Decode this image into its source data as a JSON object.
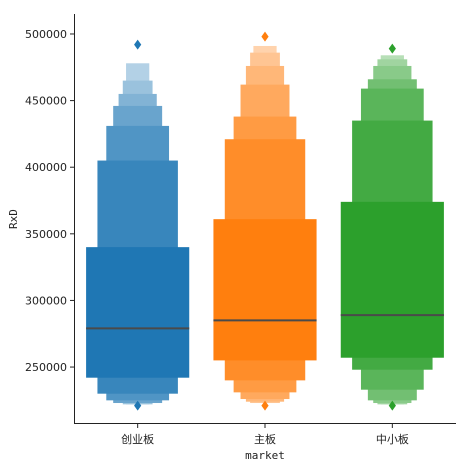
{
  "chart_data": {
    "type": "boxen",
    "title": "",
    "xlabel": "market",
    "ylabel": "RxD",
    "ylim": [
      208000,
      515000
    ],
    "yticks": [
      250000,
      300000,
      350000,
      400000,
      450000,
      500000
    ],
    "ytick_labels": [
      "250000",
      "300000",
      "350000",
      "400000",
      "450000",
      "500000"
    ],
    "grid": false,
    "legend": "none",
    "categories": [
      "创业板",
      "主板",
      "中小板"
    ],
    "series": [
      {
        "category": "创业板",
        "color": "#1f77b4",
        "median": 279000,
        "boxes": [
          [
            242000,
            340000
          ],
          [
            230000,
            405000
          ],
          [
            225000,
            431000
          ],
          [
            223000,
            446000
          ],
          [
            223000,
            455000
          ],
          [
            222000,
            465000
          ],
          [
            222000,
            478000
          ]
        ],
        "outliers": [
          492000,
          221000
        ]
      },
      {
        "category": "主板",
        "color": "#ff7f0e",
        "median": 285000,
        "boxes": [
          [
            255000,
            361000
          ],
          [
            240000,
            421000
          ],
          [
            231000,
            438000
          ],
          [
            226000,
            462000
          ],
          [
            224000,
            476000
          ],
          [
            223000,
            486000
          ],
          [
            223000,
            491000
          ]
        ],
        "outliers": [
          498000,
          221000
        ]
      },
      {
        "category": "中小板",
        "color": "#2ca02c",
        "median": 289000,
        "boxes": [
          [
            257000,
            374000
          ],
          [
            248000,
            435000
          ],
          [
            233000,
            459000
          ],
          [
            225000,
            466000
          ],
          [
            223000,
            476000
          ],
          [
            222000,
            481000
          ],
          [
            222000,
            484000
          ]
        ],
        "outliers": [
          489000,
          221000
        ]
      }
    ]
  }
}
